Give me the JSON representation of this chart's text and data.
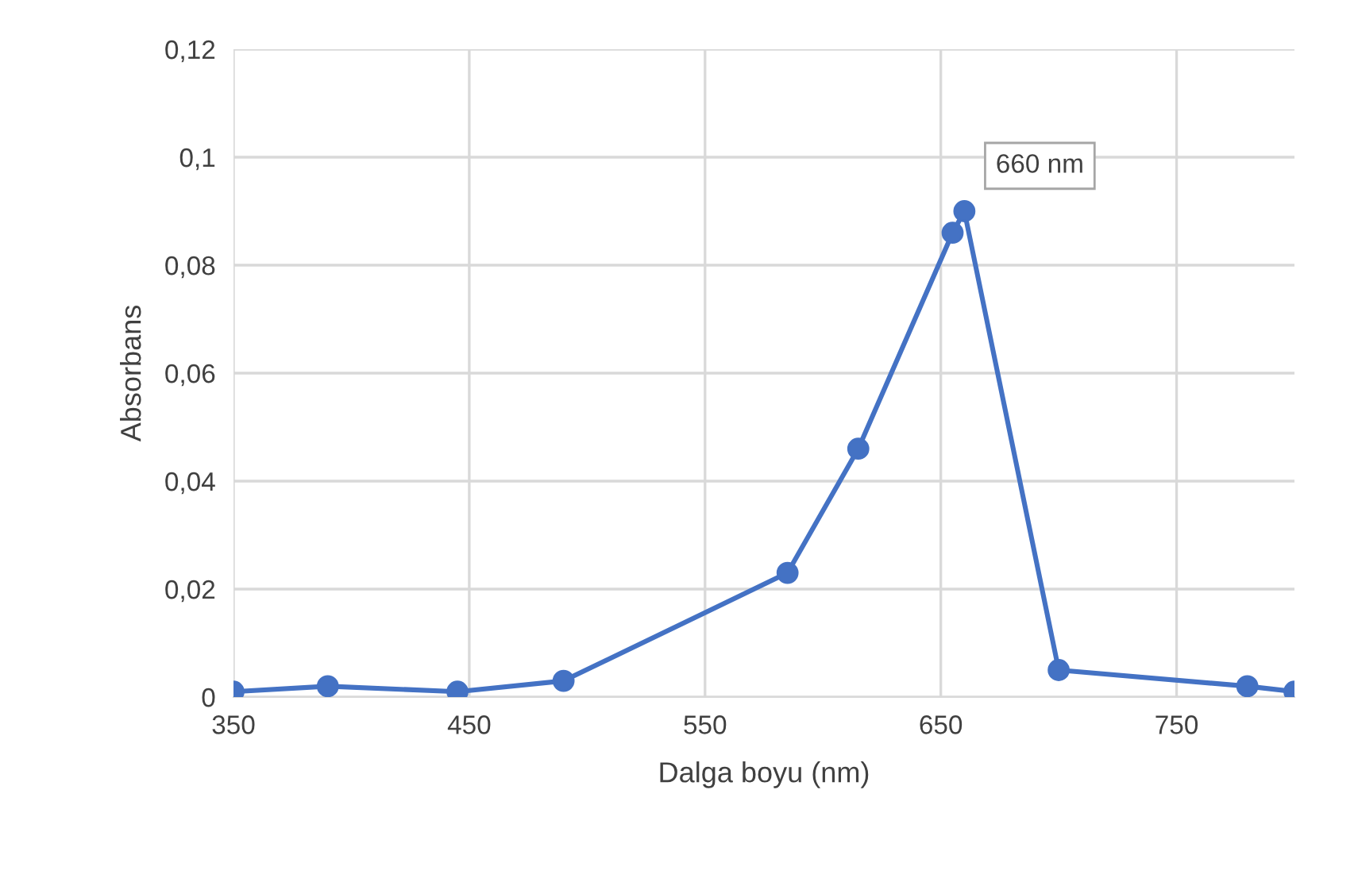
{
  "chart_data": {
    "type": "line",
    "xlabel": "Dalga boyu (nm)",
    "ylabel": "Absorbans",
    "x": [
      350,
      390,
      445,
      490,
      585,
      615,
      655,
      660,
      700,
      780,
      800
    ],
    "series": [
      {
        "color": "#4472c4",
        "values": [
          0.001,
          0.002,
          0.001,
          0.003,
          0.023,
          0.046,
          0.086,
          0.09,
          0.005,
          0.002,
          0.001
        ]
      }
    ],
    "xlim": [
      350,
      800
    ],
    "xticks": [
      350,
      450,
      550,
      650,
      750
    ],
    "ylim": [
      0,
      0.12
    ],
    "yticks": [
      0,
      {
        "value": 0.02,
        "label": "0,02"
      },
      {
        "value": 0.04,
        "label": "0,04"
      },
      {
        "value": 0.06,
        "label": "0,06"
      },
      {
        "value": 0.08,
        "label": "0,08"
      },
      {
        "value": 0.1,
        "label": "0,1"
      },
      {
        "value": 0.12,
        "label": "0,12"
      }
    ],
    "grid": true,
    "marker": "circle",
    "line_style": "solid",
    "annotations": [
      "660 nm"
    ]
  }
}
